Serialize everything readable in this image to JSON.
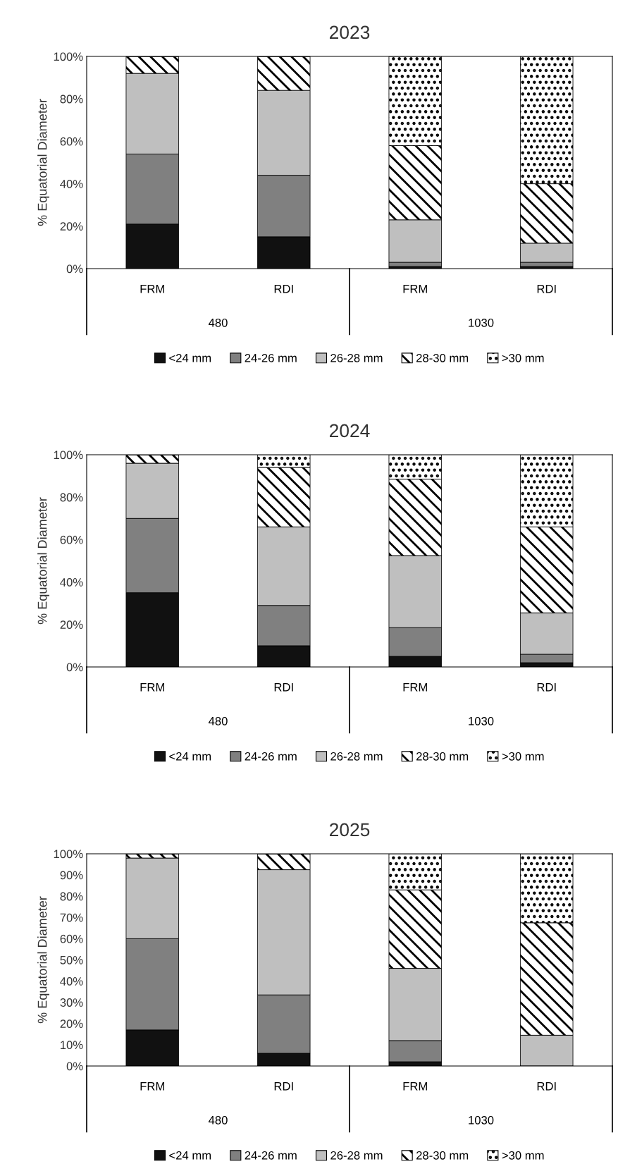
{
  "chart_data": [
    {
      "type": "bar",
      "title": "2023",
      "ylabel": "% Equatorial Diameter",
      "stacked": true,
      "legend": "bottom",
      "grid": false,
      "categories": [
        "FRM",
        "RDI",
        "FRM",
        "RDI"
      ],
      "annotations": [
        "480",
        "1030"
      ],
      "ylim": [
        0,
        100
      ],
      "yticks": [
        {
          "value": 0,
          "label": "0%"
        },
        {
          "value": 20,
          "label": "20%"
        },
        {
          "value": 40,
          "label": "40%"
        },
        {
          "value": 60,
          "label": "60%"
        },
        {
          "value": 80,
          "label": "80%"
        },
        {
          "value": 100,
          "label": "100%"
        }
      ],
      "series": [
        {
          "name": "<24 mm",
          "color": "#111111",
          "values": [
            21,
            15,
            1,
            1
          ]
        },
        {
          "name": "24-26 mm",
          "color": "#808080",
          "values": [
            33,
            29,
            2,
            2
          ]
        },
        {
          "name": "26-28 mm",
          "color": "#bfbfbf",
          "values": [
            38,
            40,
            20,
            9
          ]
        },
        {
          "name": "28-30 mm",
          "color": "#000000",
          "values": [
            8,
            16,
            35,
            28
          ]
        },
        {
          "name": ">30 mm",
          "color": "#000000",
          "values": [
            0,
            0,
            42,
            60
          ]
        }
      ]
    },
    {
      "type": "bar",
      "title": "2024",
      "ylabel": "% Equatorial Diameter",
      "stacked": true,
      "legend": "bottom",
      "grid": false,
      "categories": [
        "FRM",
        "RDI",
        "FRM",
        "RDI"
      ],
      "annotations": [
        "480",
        "1030"
      ],
      "ylim": [
        0,
        100
      ],
      "yticks": [
        {
          "value": 0,
          "label": "0%"
        },
        {
          "value": 20,
          "label": "20%"
        },
        {
          "value": 40,
          "label": "40%"
        },
        {
          "value": 60,
          "label": "60%"
        },
        {
          "value": 80,
          "label": "80%"
        },
        {
          "value": 100,
          "label": "100%"
        }
      ],
      "series": [
        {
          "name": "<24 mm",
          "color": "#111111",
          "values": [
            35,
            10,
            5,
            2
          ]
        },
        {
          "name": "24-26 mm",
          "color": "#808080",
          "values": [
            35,
            19,
            13.5,
            4
          ]
        },
        {
          "name": "26-28 mm",
          "color": "#bfbfbf",
          "values": [
            26,
            37,
            34,
            19.5
          ]
        },
        {
          "name": "28-30 mm",
          "color": "#000000",
          "values": [
            4,
            28,
            36,
            40.5
          ]
        },
        {
          "name": ">30 mm",
          "color": "#000000",
          "values": [
            0,
            6,
            11.5,
            34
          ]
        }
      ]
    },
    {
      "type": "bar",
      "title": "2025",
      "ylabel": "% Equatorial Diameter",
      "stacked": true,
      "legend": "bottom",
      "grid": false,
      "categories": [
        "FRM",
        "RDI",
        "FRM",
        "RDI"
      ],
      "annotations": [
        "480",
        "1030"
      ],
      "ylim": [
        0,
        100
      ],
      "yticks": [
        {
          "value": 0,
          "label": "0%"
        },
        {
          "value": 10,
          "label": "10%"
        },
        {
          "value": 20,
          "label": "20%"
        },
        {
          "value": 30,
          "label": "30%"
        },
        {
          "value": 40,
          "label": "40%"
        },
        {
          "value": 50,
          "label": "50%"
        },
        {
          "value": 60,
          "label": "60%"
        },
        {
          "value": 70,
          "label": "70%"
        },
        {
          "value": 80,
          "label": "80%"
        },
        {
          "value": 90,
          "label": "90%"
        },
        {
          "value": 100,
          "label": "100%"
        }
      ],
      "series": [
        {
          "name": "<24 mm",
          "color": "#111111",
          "values": [
            17,
            6,
            2,
            0
          ]
        },
        {
          "name": "24-26 mm",
          "color": "#808080",
          "values": [
            43,
            27.5,
            10,
            0
          ]
        },
        {
          "name": "26-28 mm",
          "color": "#bfbfbf",
          "values": [
            38,
            59,
            34,
            14.5
          ]
        },
        {
          "name": "28-30 mm",
          "color": "#000000",
          "values": [
            2,
            7.5,
            37,
            53
          ]
        },
        {
          "name": ">30 mm",
          "color": "#000000",
          "values": [
            0,
            0,
            17,
            32.5
          ]
        }
      ]
    }
  ]
}
